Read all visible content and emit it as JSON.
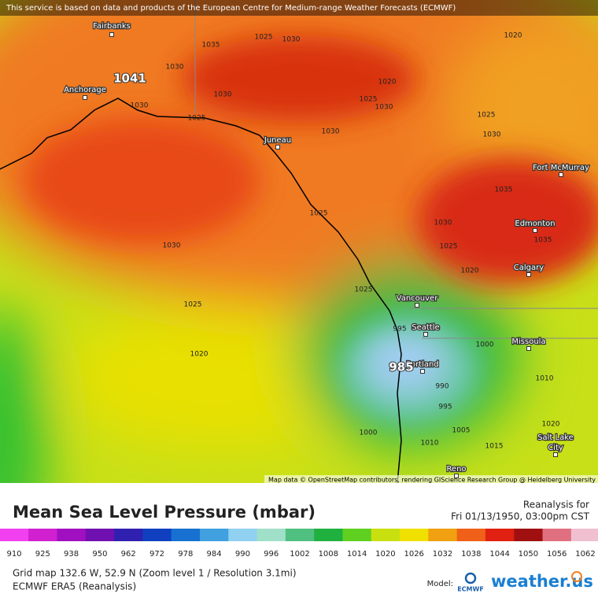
{
  "banner": "This service is based on data and products of the European Centre for Medium-range Weather Forecasts (ECMWF)",
  "attribution": "Map data © OpenStreetMap contributors, rendering GIScience Research Group @ Heidelberg University",
  "cities": [
    "Fairbanks",
    "Anchorage",
    "Juneau",
    "Fort McMurray",
    "Edmonton",
    "Calgary",
    "Vancouver",
    "Seattle",
    "Portland",
    "Missoula",
    "Salt Lake",
    "City",
    "Reno"
  ],
  "isobars": [
    1041,
    1030,
    1025,
    1030,
    1035,
    1020,
    1030,
    1030,
    1025,
    1020,
    1025,
    1030,
    1025,
    1030,
    1030,
    1035,
    1035,
    1025,
    1030,
    1025,
    1020,
    1030,
    1025,
    1020,
    1025,
    995,
    1000,
    985,
    990,
    995,
    1005,
    1000,
    1010,
    1015,
    1010,
    1020
  ],
  "title": "Mean Sea Level Pressure (mbar)",
  "reanalysis_label": "Reanalysis for",
  "datetime": "Fri 01/13/1950, 03:00pm CST",
  "colorbar": {
    "ticks": [
      910,
      925,
      938,
      950,
      962,
      972,
      978,
      984,
      990,
      996,
      1002,
      1008,
      1014,
      1020,
      1026,
      1032,
      1038,
      1044,
      1050,
      1056,
      1062
    ],
    "colors": [
      "#f040f0",
      "#d020d0",
      "#a010c0",
      "#7010b0",
      "#3020b0",
      "#1040c0",
      "#1870d0",
      "#40a0e0",
      "#90d0f0",
      "#a0e0c8",
      "#50c080",
      "#20b040",
      "#60d020",
      "#c8e010",
      "#f0e000",
      "#f0a010",
      "#f06018",
      "#e02010",
      "#a01010",
      "#e07080",
      "#f0c0d0"
    ]
  },
  "grid_info": "Grid map 132.6 W, 52.9 N (Zoom level 1 / Resolution 3.1mi)",
  "model_name": "ECMWF ERA5 (Reanalysis)",
  "model_label": "Model:",
  "model_logo": "ECMWF",
  "brand": "weather.us"
}
